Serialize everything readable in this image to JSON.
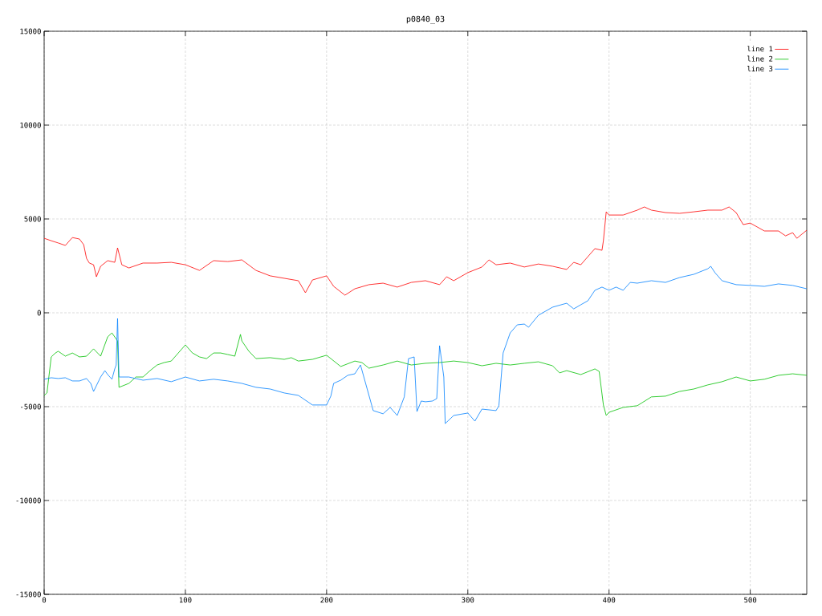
{
  "chart_data": {
    "type": "line",
    "title": "p0840_03",
    "xlim": [
      0,
      540
    ],
    "ylim": [
      -15000,
      15000
    ],
    "xticks": [
      0,
      100,
      200,
      300,
      400,
      500
    ],
    "yticks": [
      -15000,
      -10000,
      -5000,
      0,
      5000,
      10000,
      15000
    ],
    "grid": true,
    "legend": "top right",
    "marker": "none",
    "line_style": "solid",
    "series": [
      {
        "name": "line 1",
        "color": "#ff0000",
        "x": [
          0,
          5,
          10,
          15,
          20,
          25,
          28,
          30,
          32,
          35,
          37,
          40,
          45,
          50,
          52,
          55,
          60,
          70,
          80,
          90,
          100,
          110,
          120,
          130,
          140,
          150,
          160,
          170,
          180,
          185,
          190,
          200,
          205,
          213,
          220,
          230,
          240,
          250,
          260,
          270,
          280,
          285,
          290,
          300,
          310,
          315,
          320,
          330,
          340,
          350,
          360,
          370,
          375,
          380,
          385,
          390,
          395,
          396,
          398,
          400,
          410,
          420,
          425,
          430,
          440,
          450,
          460,
          470,
          480,
          485,
          490,
          495,
          500,
          510,
          520,
          525,
          530,
          533,
          540
        ],
        "values": [
          3970,
          3840,
          3720,
          3590,
          4010,
          3930,
          3630,
          2900,
          2650,
          2560,
          1920,
          2480,
          2780,
          2690,
          3460,
          2560,
          2390,
          2650,
          2650,
          2690,
          2560,
          2260,
          2780,
          2730,
          2820,
          2260,
          1970,
          1840,
          1710,
          1070,
          1750,
          1970,
          1410,
          940,
          1280,
          1500,
          1580,
          1370,
          1620,
          1710,
          1500,
          1920,
          1710,
          2140,
          2440,
          2820,
          2560,
          2650,
          2440,
          2600,
          2480,
          2310,
          2690,
          2560,
          2990,
          3420,
          3330,
          3840,
          5380,
          5210,
          5210,
          5470,
          5640,
          5470,
          5340,
          5300,
          5380,
          5470,
          5470,
          5640,
          5340,
          4700,
          4780,
          4360,
          4360,
          4100,
          4270,
          3970,
          4400
        ]
      },
      {
        "name": "line 2",
        "color": "#00c000",
        "x": [
          0,
          2,
          5,
          8,
          10,
          15,
          20,
          25,
          30,
          35,
          40,
          45,
          48,
          52,
          53,
          60,
          65,
          70,
          75,
          80,
          85,
          90,
          100,
          105,
          110,
          115,
          120,
          125,
          130,
          135,
          139,
          140,
          145,
          150,
          160,
          170,
          175,
          180,
          190,
          200,
          210,
          220,
          225,
          230,
          240,
          250,
          260,
          270,
          280,
          290,
          300,
          310,
          320,
          330,
          340,
          350,
          360,
          365,
          370,
          380,
          390,
          393,
          396,
          398,
          400,
          410,
          420,
          430,
          440,
          450,
          460,
          470,
          480,
          490,
          500,
          510,
          520,
          530,
          540
        ],
        "values": [
          -4400,
          -4270,
          -2350,
          -2140,
          -2050,
          -2310,
          -2140,
          -2350,
          -2310,
          -1920,
          -2310,
          -1280,
          -1070,
          -1500,
          -3970,
          -3760,
          -3420,
          -3420,
          -3080,
          -2780,
          -2650,
          -2570,
          -1710,
          -2140,
          -2350,
          -2440,
          -2140,
          -2140,
          -2220,
          -2310,
          -1150,
          -1500,
          -2050,
          -2440,
          -2390,
          -2480,
          -2390,
          -2570,
          -2480,
          -2260,
          -2860,
          -2570,
          -2650,
          -2950,
          -2780,
          -2570,
          -2780,
          -2690,
          -2650,
          -2570,
          -2650,
          -2820,
          -2690,
          -2780,
          -2690,
          -2610,
          -2820,
          -3200,
          -3080,
          -3290,
          -2990,
          -3120,
          -4910,
          -5470,
          -5300,
          -5040,
          -4950,
          -4480,
          -4440,
          -4190,
          -4060,
          -3840,
          -3670,
          -3420,
          -3630,
          -3540,
          -3330,
          -3250,
          -3330
        ]
      },
      {
        "name": "line 3",
        "color": "#0080ff",
        "x": [
          0,
          5,
          10,
          15,
          20,
          25,
          30,
          33,
          35,
          40,
          43,
          45,
          48,
          50,
          51,
          52,
          53,
          55,
          60,
          70,
          80,
          90,
          100,
          110,
          120,
          130,
          140,
          150,
          160,
          170,
          180,
          190,
          200,
          203,
          205,
          210,
          215,
          220,
          224,
          233,
          240,
          245,
          250,
          255,
          258,
          262,
          264,
          267,
          270,
          275,
          278,
          280,
          283,
          284,
          290,
          300,
          305,
          310,
          320,
          322,
          325,
          330,
          335,
          340,
          343,
          350,
          360,
          370,
          375,
          380,
          385,
          390,
          395,
          400,
          405,
          410,
          415,
          420,
          430,
          440,
          450,
          460,
          470,
          472,
          475,
          480,
          490,
          500,
          510,
          520,
          530,
          540
        ],
        "values": [
          -3540,
          -3460,
          -3500,
          -3460,
          -3630,
          -3630,
          -3500,
          -3760,
          -4190,
          -3420,
          -3080,
          -3290,
          -3540,
          -2990,
          -2780,
          -300,
          -3420,
          -3420,
          -3420,
          -3590,
          -3500,
          -3670,
          -3420,
          -3630,
          -3540,
          -3630,
          -3760,
          -3970,
          -4060,
          -4270,
          -4400,
          -4910,
          -4910,
          -4440,
          -3760,
          -3590,
          -3330,
          -3250,
          -2780,
          -5210,
          -5380,
          -5040,
          -5470,
          -4480,
          -2440,
          -2350,
          -5260,
          -4700,
          -4740,
          -4700,
          -4570,
          -1750,
          -3420,
          -5900,
          -5470,
          -5340,
          -5770,
          -5130,
          -5210,
          -4950,
          -2140,
          -1070,
          -640,
          -600,
          -770,
          -130,
          300,
          510,
          210,
          430,
          640,
          1200,
          1370,
          1200,
          1370,
          1200,
          1620,
          1580,
          1710,
          1620,
          1880,
          2050,
          2350,
          2480,
          2140,
          1710,
          1500,
          1460,
          1410,
          1540,
          1460,
          1280
        ]
      }
    ]
  }
}
